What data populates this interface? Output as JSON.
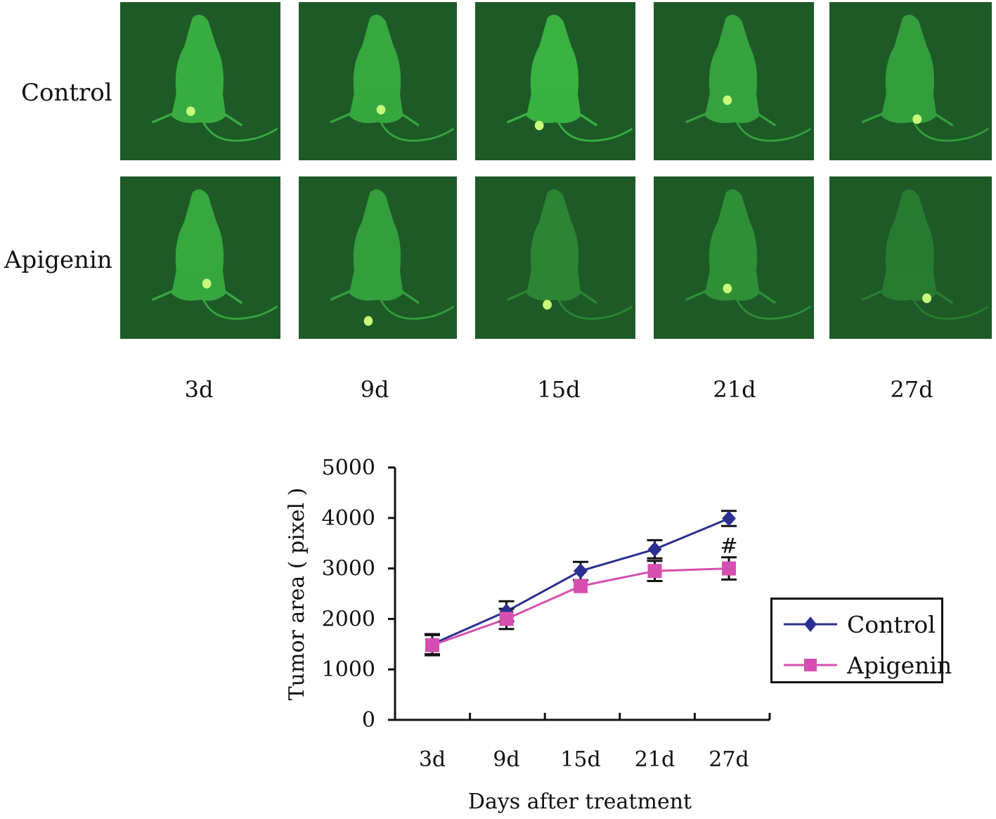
{
  "row_labels": [
    "Control",
    "Apigenin"
  ],
  "day_labels": [
    "3d",
    "9d",
    "15d",
    "21d",
    "27d"
  ],
  "panel_colors": {
    "background": "#1d5a27",
    "mouse": "#3dbb45",
    "tumor": "#c8ff7a"
  },
  "chart_data": {
    "type": "line",
    "title": "",
    "xlabel": "Days after treatment",
    "ylabel": "Tumor area ( pixel )",
    "categories": [
      "3d",
      "9d",
      "15d",
      "21d",
      "27d"
    ],
    "ylim": [
      0,
      5000
    ],
    "yticks": [
      "0",
      "1000",
      "2000",
      "3000",
      "4000",
      "5000"
    ],
    "grid": false,
    "legend_position": "right",
    "series": [
      {
        "name": "Control",
        "color": "#2b2f8f",
        "marker": "diamond",
        "values": [
          1500,
          2150,
          2950,
          3380,
          3990
        ],
        "errors": [
          200,
          200,
          180,
          180,
          150
        ]
      },
      {
        "name": "Apigenin",
        "color": "#d64fb0",
        "marker": "square",
        "values": [
          1480,
          2000,
          2650,
          2950,
          3000
        ],
        "errors": [
          200,
          200,
          0,
          200,
          220
        ]
      }
    ],
    "annotations": [
      {
        "text": "#",
        "x": "27d",
        "y": 3450
      }
    ]
  }
}
